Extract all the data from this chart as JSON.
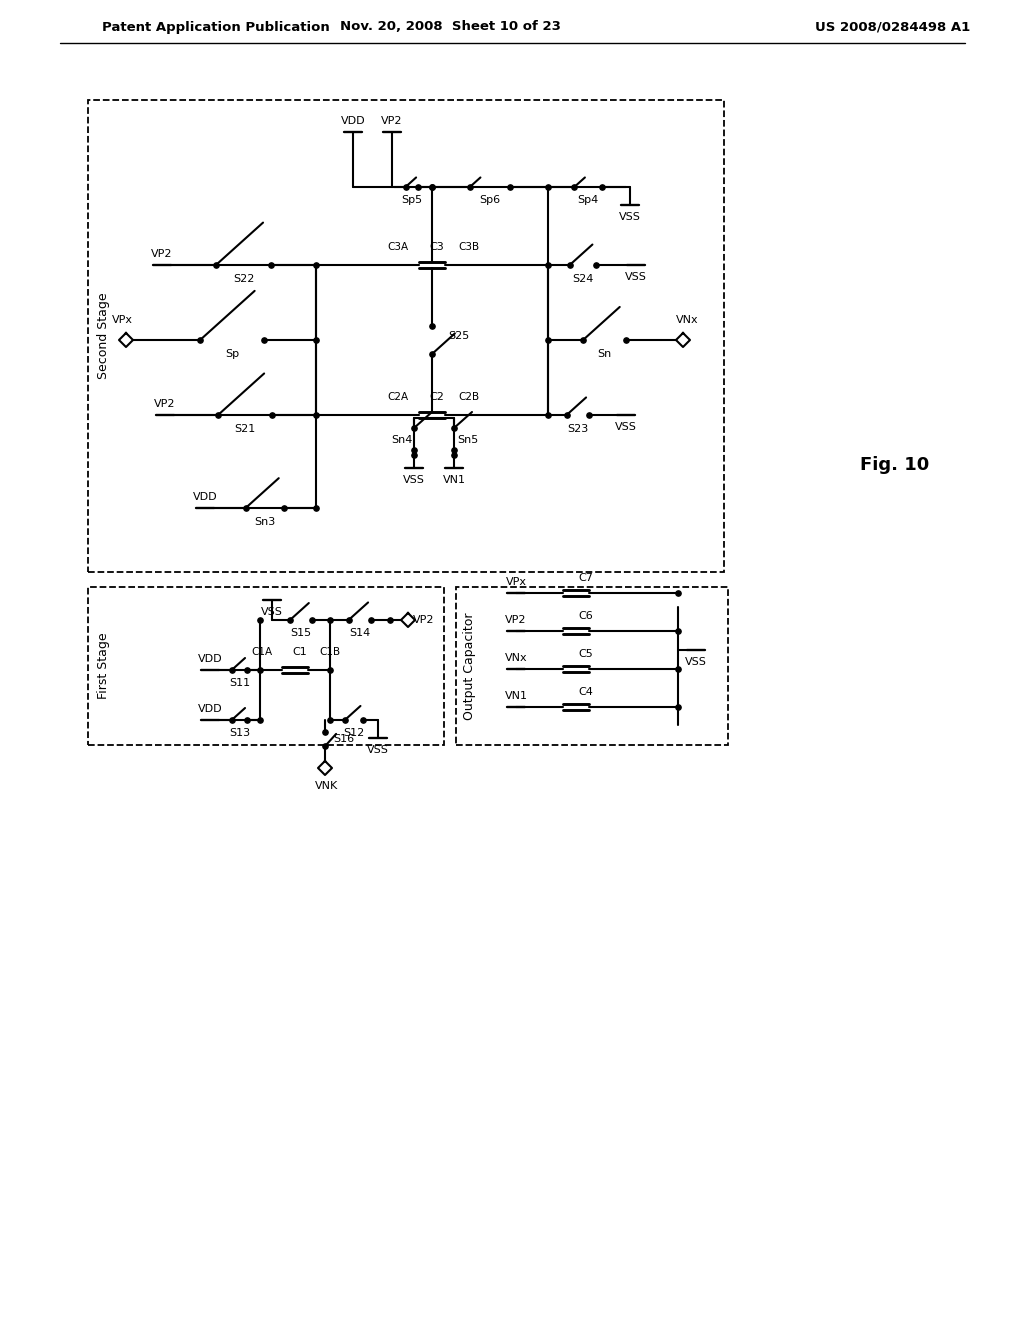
{
  "header_left": "Patent Application Publication",
  "header_mid": "Nov. 20, 2008  Sheet 10 of 23",
  "header_right": "US 2008/0284498 A1",
  "fig_label": "Fig. 10",
  "bg_color": "#ffffff"
}
